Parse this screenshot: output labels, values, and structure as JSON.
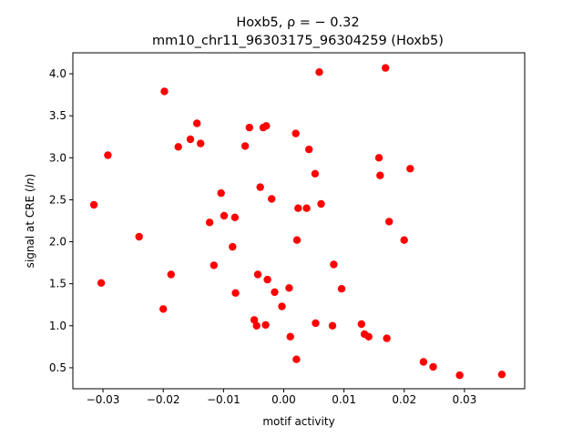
{
  "chart_data": {
    "type": "scatter",
    "title": "Hoxb5, ρ = − 0.32",
    "subtitle": "mm10_chr11_96303175_96304259 (Hoxb5)",
    "xlabel": "motif activity",
    "ylabel": "signal at CRE (ln)",
    "xlim": [
      -0.035,
      0.04
    ],
    "ylim": [
      0.25,
      4.25
    ],
    "xticks": [
      -0.03,
      -0.02,
      -0.01,
      0.0,
      0.01,
      0.02,
      0.03
    ],
    "xtick_labels": [
      "−0.03",
      "−0.02",
      "−0.01",
      "0.00",
      "0.01",
      "0.02",
      "0.03"
    ],
    "yticks": [
      0.5,
      1.0,
      1.5,
      2.0,
      2.5,
      3.0,
      3.5,
      4.0
    ],
    "ytick_labels": [
      "0.5",
      "1.0",
      "1.5",
      "2.0",
      "2.5",
      "3.0",
      "3.5",
      "4.0"
    ],
    "grid": false,
    "marker_color": "#ff0000",
    "points": [
      {
        "x": -0.0315,
        "y": 2.44
      },
      {
        "x": -0.0303,
        "y": 1.51
      },
      {
        "x": -0.0292,
        "y": 3.03
      },
      {
        "x": -0.024,
        "y": 2.06
      },
      {
        "x": -0.02,
        "y": 1.2
      },
      {
        "x": -0.0198,
        "y": 3.79
      },
      {
        "x": -0.0187,
        "y": 1.61
      },
      {
        "x": -0.0175,
        "y": 3.13
      },
      {
        "x": -0.0155,
        "y": 3.22
      },
      {
        "x": -0.0144,
        "y": 3.41
      },
      {
        "x": -0.0138,
        "y": 3.17
      },
      {
        "x": -0.0123,
        "y": 2.23
      },
      {
        "x": -0.0116,
        "y": 1.72
      },
      {
        "x": -0.0104,
        "y": 2.58
      },
      {
        "x": -0.0099,
        "y": 2.31
      },
      {
        "x": -0.0085,
        "y": 1.94
      },
      {
        "x": -0.0081,
        "y": 2.29
      },
      {
        "x": -0.008,
        "y": 1.39
      },
      {
        "x": -0.0064,
        "y": 3.14
      },
      {
        "x": -0.0057,
        "y": 3.36
      },
      {
        "x": -0.0049,
        "y": 1.07
      },
      {
        "x": -0.0045,
        "y": 1.0
      },
      {
        "x": -0.0043,
        "y": 1.61
      },
      {
        "x": -0.0039,
        "y": 2.65
      },
      {
        "x": -0.0034,
        "y": 3.36
      },
      {
        "x": -0.0029,
        "y": 3.38
      },
      {
        "x": -0.003,
        "y": 1.01
      },
      {
        "x": -0.0027,
        "y": 1.55
      },
      {
        "x": -0.002,
        "y": 2.51
      },
      {
        "x": -0.0015,
        "y": 1.4
      },
      {
        "x": -0.0003,
        "y": 1.23
      },
      {
        "x": 0.0009,
        "y": 1.45
      },
      {
        "x": 0.0011,
        "y": 0.87
      },
      {
        "x": 0.002,
        "y": 3.29
      },
      {
        "x": 0.0021,
        "y": 0.6
      },
      {
        "x": 0.0022,
        "y": 2.02
      },
      {
        "x": 0.0024,
        "y": 2.4
      },
      {
        "x": 0.0038,
        "y": 2.4
      },
      {
        "x": 0.0042,
        "y": 3.1
      },
      {
        "x": 0.0052,
        "y": 2.81
      },
      {
        "x": 0.0053,
        "y": 1.03
      },
      {
        "x": 0.0059,
        "y": 4.02
      },
      {
        "x": 0.0062,
        "y": 2.45
      },
      {
        "x": 0.0081,
        "y": 1.0
      },
      {
        "x": 0.0083,
        "y": 1.73
      },
      {
        "x": 0.0096,
        "y": 1.44
      },
      {
        "x": 0.0129,
        "y": 1.02
      },
      {
        "x": 0.0134,
        "y": 0.9
      },
      {
        "x": 0.0141,
        "y": 0.87
      },
      {
        "x": 0.0158,
        "y": 3.0
      },
      {
        "x": 0.016,
        "y": 2.79
      },
      {
        "x": 0.0169,
        "y": 4.07
      },
      {
        "x": 0.0171,
        "y": 0.85
      },
      {
        "x": 0.0175,
        "y": 2.24
      },
      {
        "x": 0.02,
        "y": 2.02
      },
      {
        "x": 0.021,
        "y": 2.87
      },
      {
        "x": 0.0232,
        "y": 0.57
      },
      {
        "x": 0.0248,
        "y": 0.51
      },
      {
        "x": 0.0292,
        "y": 0.41
      },
      {
        "x": 0.0362,
        "y": 0.42
      }
    ]
  }
}
